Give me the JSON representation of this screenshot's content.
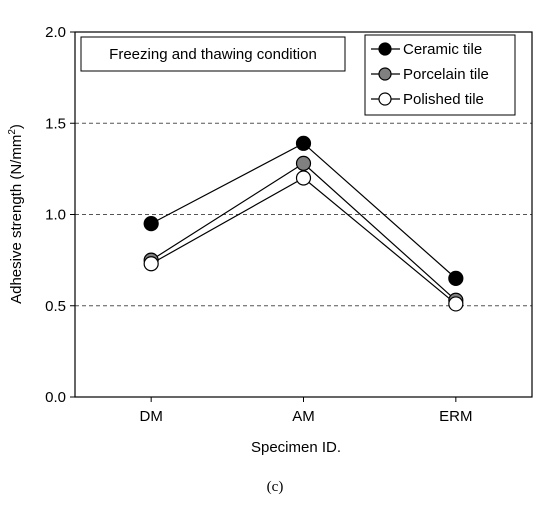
{
  "chart_data": {
    "type": "line",
    "categories": [
      "DM",
      "AM",
      "ERM"
    ],
    "series": [
      {
        "name": "Ceramic tile",
        "values": [
          0.95,
          1.39,
          0.65
        ],
        "marker_fill": "#000000"
      },
      {
        "name": "Porcelain tile",
        "values": [
          0.75,
          1.28,
          0.53
        ],
        "marker_fill": "#808080"
      },
      {
        "name": "Polished tile",
        "values": [
          0.73,
          1.2,
          0.51
        ],
        "marker_fill": "#ffffff"
      }
    ],
    "yticks": [
      "0.0",
      "0.5",
      "1.0",
      "1.5",
      "2.0"
    ],
    "ylim": [
      0,
      2.0
    ],
    "xlabel": "Specimen ID.",
    "ylabel_main": "Adhesive strength (N/mm",
    "ylabel_sup": "2",
    "ylabel_close": ")",
    "annotation": "Freezing and thawing condition",
    "grid": "horizontal dashed",
    "legend_position": "top-right"
  },
  "caption": "(c)"
}
